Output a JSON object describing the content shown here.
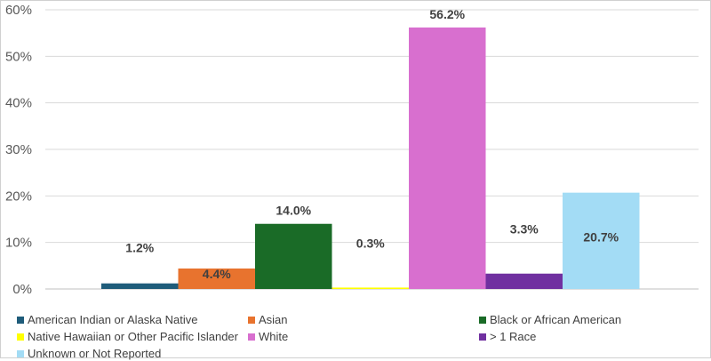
{
  "chart_data": {
    "type": "bar",
    "categories": [
      "American Indian or Alaska Native",
      "Asian",
      "Black or African American",
      "Native Hawaiian or Other Pacific Islander",
      "White",
      "> 1 Race",
      "Unknown or Not Reported"
    ],
    "values": [
      1.2,
      4.4,
      14.0,
      0.3,
      56.2,
      3.3,
      20.7
    ],
    "data_labels": [
      "1.2%",
      "4.4%",
      "14.0%",
      "0.3%",
      "56.2%",
      "3.3%",
      "20.7%"
    ],
    "colors": [
      "#1f5c7a",
      "#e8732e",
      "#1a6b27",
      "#ffff00",
      "#d86fcf",
      "#7030a0",
      "#a3dcf5"
    ],
    "y_ticks": [
      "0%",
      "10%",
      "20%",
      "30%",
      "40%",
      "50%",
      "60%"
    ],
    "ylim": [
      0,
      60
    ],
    "grid": true,
    "legend_position": "bottom"
  }
}
